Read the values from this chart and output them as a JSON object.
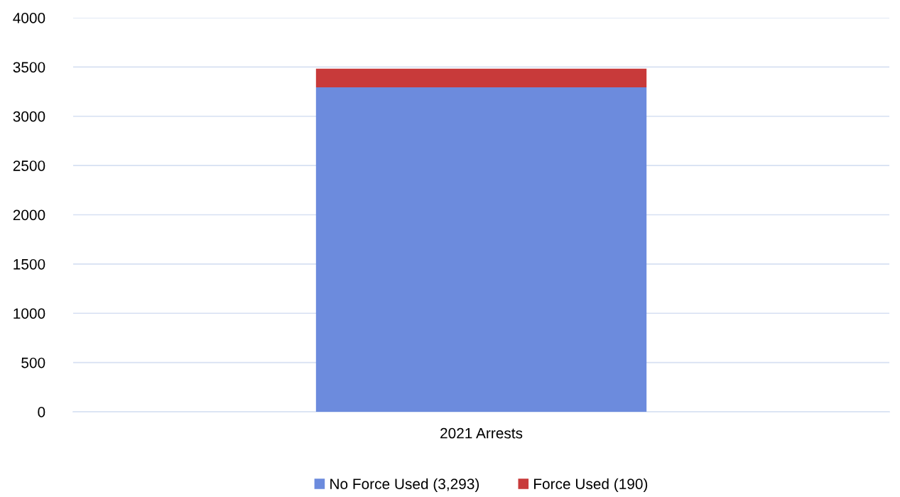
{
  "chart_data": {
    "type": "bar",
    "stacked": true,
    "categories": [
      "2021 Arrests"
    ],
    "series": [
      {
        "name": "No Force Used (3,293)",
        "color": "#6c8bdd",
        "values": [
          3293
        ]
      },
      {
        "name": "Force Used (190)",
        "color": "#c83a3a",
        "values": [
          190
        ]
      }
    ],
    "ylim": [
      0,
      4000
    ],
    "yticks": [
      0,
      500,
      1000,
      1500,
      2000,
      2500,
      3000,
      3500,
      4000
    ],
    "grid": "y",
    "legend": "bottom"
  }
}
